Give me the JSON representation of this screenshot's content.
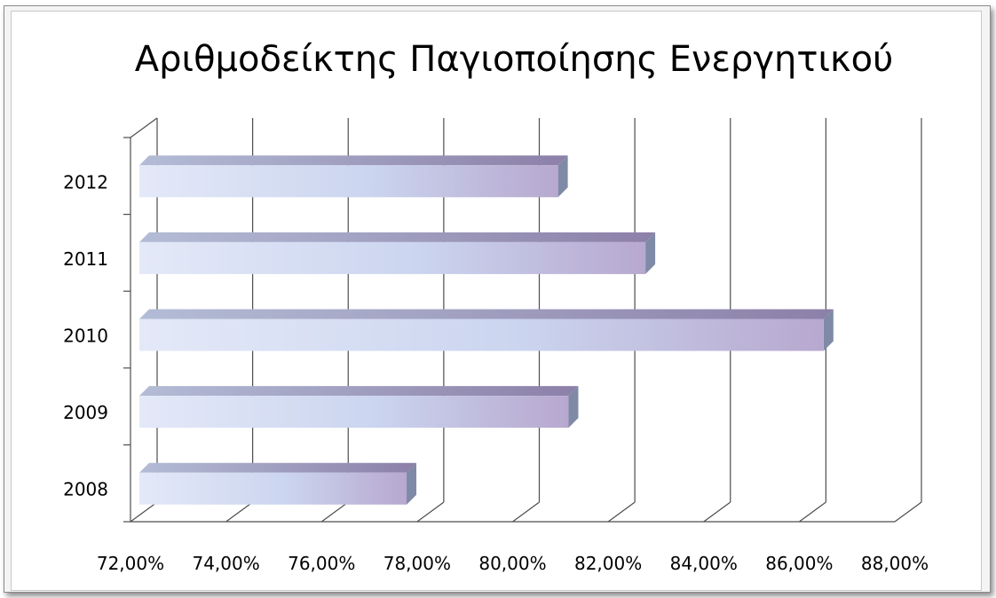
{
  "chart_data": {
    "type": "bar",
    "orientation": "horizontal",
    "title": "Αριθμοδείκτης Παγιοποίησης Ενεργητικού",
    "xlabel": "",
    "ylabel": "",
    "categories": [
      "2012",
      "2011",
      "2010",
      "2009",
      "2008"
    ],
    "values": [
      0.8095,
      0.8278,
      0.8651,
      0.8117,
      0.7778
    ],
    "xlim": [
      0.72,
      0.88
    ],
    "ticks": [
      "72,00%",
      "74,00%",
      "76,00%",
      "78,00%",
      "80,00%",
      "82,00%",
      "84,00%",
      "86,00%",
      "88,00%"
    ],
    "grid": true,
    "legend": "none",
    "style": "3d-clustered-bar",
    "colors": {
      "bar_light": "#dfe6f7",
      "bar_mid": "#c6d2ee",
      "bar_dark": "#a99ac2",
      "bar_side": "#7f8aa6",
      "grid": "#4d4d4d"
    }
  }
}
